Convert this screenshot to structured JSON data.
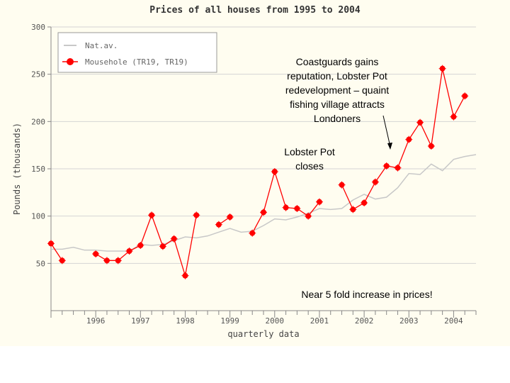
{
  "chart_data": {
    "type": "line",
    "title": "Prices of all houses from 1995 to 2004",
    "xlabel": "quarterly data",
    "ylabel": "Pounds (thousands)",
    "ylim": [
      0,
      300
    ],
    "yticks": [
      50,
      100,
      150,
      200,
      250,
      300
    ],
    "xlim": [
      1995.0,
      2004.5
    ],
    "year_ticks": [
      "1996",
      "1997",
      "1998",
      "1999",
      "2000",
      "2001",
      "2002",
      "2003",
      "2004"
    ],
    "grid": true,
    "legend_position": "top-left",
    "series": [
      {
        "name": "Nat.av.",
        "color": "#c8c8c8",
        "marker": "none",
        "points": [
          [
            1995.0,
            65
          ],
          [
            1995.25,
            65
          ],
          [
            1995.5,
            67
          ],
          [
            1995.75,
            64
          ],
          [
            1996.0,
            64
          ],
          [
            1996.25,
            63
          ],
          [
            1996.5,
            63
          ],
          [
            1996.75,
            63
          ],
          [
            1997.0,
            70
          ],
          [
            1997.25,
            69
          ],
          [
            1997.5,
            70
          ],
          [
            1997.75,
            74
          ],
          [
            1998.0,
            78
          ],
          [
            1998.25,
            77
          ],
          [
            1998.5,
            79
          ],
          [
            1998.75,
            83
          ],
          [
            1999.0,
            87
          ],
          [
            1999.25,
            83
          ],
          [
            1999.5,
            84
          ],
          [
            1999.75,
            90
          ],
          [
            2000.0,
            97
          ],
          [
            2000.25,
            96
          ],
          [
            2000.5,
            99
          ],
          [
            2000.75,
            103
          ],
          [
            2001.0,
            108
          ],
          [
            2001.25,
            107
          ],
          [
            2001.5,
            108
          ],
          [
            2001.75,
            117
          ],
          [
            2002.0,
            123
          ],
          [
            2002.25,
            118
          ],
          [
            2002.5,
            120
          ],
          [
            2002.75,
            130
          ],
          [
            2003.0,
            145
          ],
          [
            2003.25,
            144
          ],
          [
            2003.5,
            155
          ],
          [
            2003.75,
            148
          ],
          [
            2004.0,
            160
          ],
          [
            2004.25,
            163
          ],
          [
            2004.5,
            165
          ]
        ]
      },
      {
        "name": "Mousehole (TR19, TR19)",
        "color": "#ff0000",
        "marker": "dot",
        "segments": [
          [
            [
              1995.0,
              71
            ],
            [
              1995.25,
              53
            ]
          ],
          [
            [
              1996.0,
              60
            ],
            [
              1996.25,
              53
            ],
            [
              1996.5,
              53
            ],
            [
              1996.75,
              63
            ],
            [
              1997.0,
              69
            ],
            [
              1997.25,
              101
            ],
            [
              1997.5,
              68
            ],
            [
              1997.75,
              76
            ],
            [
              1998.0,
              37
            ],
            [
              1998.25,
              101
            ]
          ],
          [
            [
              1998.75,
              91
            ],
            [
              1999.0,
              99
            ]
          ],
          [
            [
              1999.5,
              82
            ],
            [
              1999.75,
              104
            ],
            [
              2000.0,
              147
            ],
            [
              2000.25,
              109
            ],
            [
              2000.5,
              108
            ],
            [
              2000.75,
              100
            ],
            [
              2001.0,
              115
            ]
          ],
          [
            [
              2001.5,
              133
            ],
            [
              2001.75,
              107
            ],
            [
              2002.0,
              114
            ],
            [
              2002.25,
              136
            ],
            [
              2002.5,
              153
            ],
            [
              2002.75,
              151
            ],
            [
              2003.0,
              181
            ],
            [
              2003.25,
              199
            ],
            [
              2003.5,
              174
            ],
            [
              2003.75,
              256
            ],
            [
              2004.0,
              205
            ],
            [
              2004.25,
              227
            ]
          ]
        ]
      }
    ],
    "annotations": [
      "Coastguards gains\nreputation, Lobster Pot\nredevelopment – quaint\nfishing village attracts\nLondoners",
      "Lobster Pot\ncloses",
      "Near 5 fold increase in prices!"
    ]
  }
}
